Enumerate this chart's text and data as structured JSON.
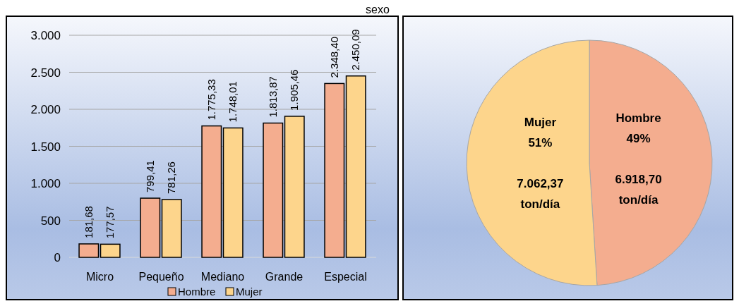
{
  "chart_data": [
    {
      "type": "bar",
      "title": "sexo",
      "categories": [
        "Micro",
        "Pequeño",
        "Mediano",
        "Grande",
        "Especial"
      ],
      "series": [
        {
          "name": "Hombre",
          "color": "#f4ad8f",
          "values": [
            181.68,
            799.41,
            1775.33,
            1813.87,
            2348.4
          ],
          "value_labels": [
            "181,68",
            "799,41",
            "1.775,33",
            "1.813,87",
            "2.348,40"
          ]
        },
        {
          "name": "Mujer",
          "color": "#fdd58c",
          "values": [
            177.57,
            781.26,
            1748.01,
            1905.46,
            2450.09
          ],
          "value_labels": [
            "177,57",
            "781,26",
            "1.748,01",
            "1.905,46",
            "2.450,09"
          ]
        }
      ],
      "ylim": [
        0,
        3000
      ],
      "yticks": [
        0,
        {
          "value": 500,
          "label": "500"
        },
        {
          "value": 1000,
          "label": "1.000"
        },
        {
          "value": 1500,
          "label": "1.500"
        },
        {
          "value": 2000,
          "label": "2.000"
        },
        {
          "value": 2500,
          "label": "2.500"
        },
        {
          "value": 3000,
          "label": "3.000"
        }
      ],
      "grid": "y",
      "legend": "bottom"
    },
    {
      "type": "pie",
      "categories": [
        "Hombre",
        "Mujer"
      ],
      "values": [
        49,
        51
      ],
      "colors": [
        "#f4ad8f",
        "#fdd58c"
      ],
      "value_labels": [
        "49%\n\n6.918,70\nton/día",
        "51%\n\n7.062,37\nton/día"
      ]
    }
  ]
}
